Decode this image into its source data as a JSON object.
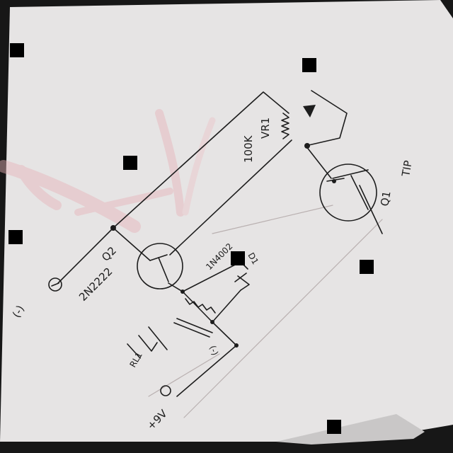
{
  "labels": {
    "vr1_name": "VR1",
    "vr1_value": "100K",
    "q2_name": "Q2",
    "q2_part": "2N2222",
    "q1_name": "Q1",
    "q1_part": "TIP",
    "diode_part": "1N4002",
    "diode_name": "D1",
    "relay_name": "RL1",
    "relay_contact": "(-)",
    "supply": "+9V",
    "neg_terminal": "(-)"
  },
  "colors": {
    "paper": "#e6e4e4",
    "ink": "#1d1d1d",
    "stain": "#e7b3b8",
    "marker": "#000000"
  }
}
